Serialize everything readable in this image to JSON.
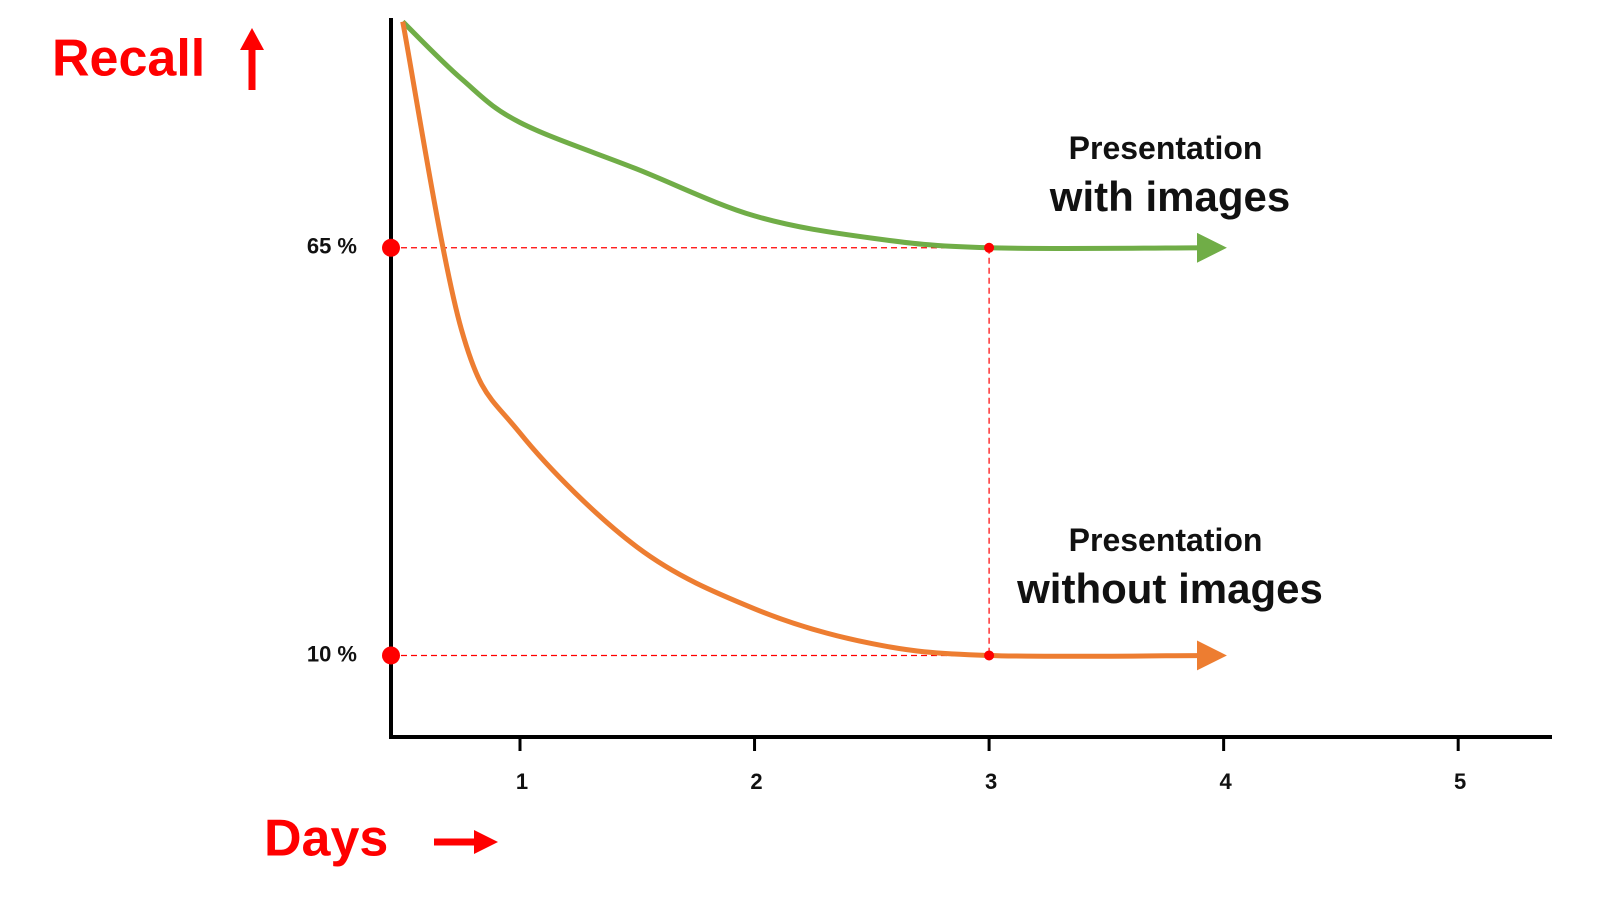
{
  "chart_data": {
    "type": "line",
    "x_label": "Days",
    "y_label": "Recall",
    "x": [
      0.5,
      0.75,
      1,
      1.5,
      2,
      2.5,
      3,
      3.95
    ],
    "series": [
      {
        "name": "Presentation with images",
        "color": "#70ad47",
        "values": [
          95.5,
          87.8,
          81.9,
          75.6,
          69.3,
          66.3,
          65,
          65
        ]
      },
      {
        "name": "Presentation without images",
        "color": "#ed7d31",
        "values": [
          95.5,
          54,
          40,
          24.6,
          16.3,
          11.6,
          10,
          10
        ]
      }
    ],
    "xlim": [
      0.45,
      5.4
    ],
    "xticks": [
      1,
      2,
      3,
      4,
      5
    ],
    "ylim": [
      -1,
      96
    ],
    "yticks": [
      {
        "value": 65,
        "label": "65 %"
      },
      {
        "value": 10,
        "label": "10 %"
      }
    ],
    "guide_color": "#ff0000"
  }
}
